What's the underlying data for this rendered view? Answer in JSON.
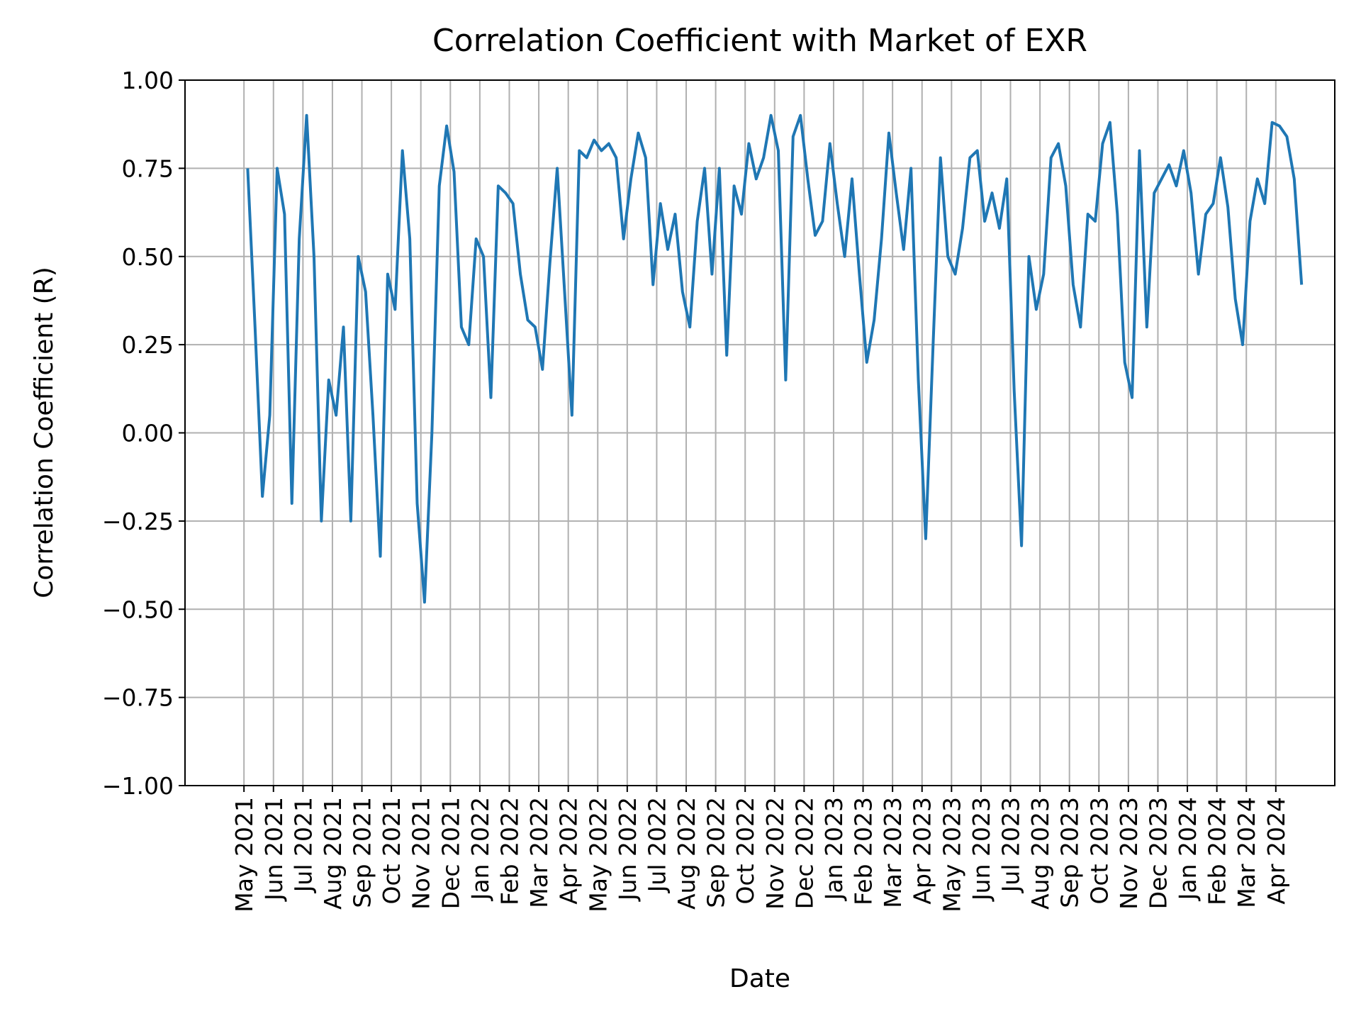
{
  "chart_data": {
    "type": "line",
    "title": "Correlation Coefficient with Market of EXR",
    "x_label": "Date",
    "y_label": "Correlation Coefficient (R)",
    "grid": true,
    "xlim": [
      "2021-03",
      "2024-06"
    ],
    "xticks": [
      {
        "value": "2021-05",
        "label": "May 2021"
      },
      {
        "value": "2021-06",
        "label": "Jun 2021"
      },
      {
        "value": "2021-07",
        "label": "Jul 2021"
      },
      {
        "value": "2021-08",
        "label": "Aug 2021"
      },
      {
        "value": "2021-09",
        "label": "Sep 2021"
      },
      {
        "value": "2021-10",
        "label": "Oct 2021"
      },
      {
        "value": "2021-11",
        "label": "Nov 2021"
      },
      {
        "value": "2021-12",
        "label": "Dec 2021"
      },
      {
        "value": "2022-01",
        "label": "Jan 2022"
      },
      {
        "value": "2022-02",
        "label": "Feb 2022"
      },
      {
        "value": "2022-03",
        "label": "Mar 2022"
      },
      {
        "value": "2022-04",
        "label": "Apr 2022"
      },
      {
        "value": "2022-05",
        "label": "May 2022"
      },
      {
        "value": "2022-06",
        "label": "Jun 2022"
      },
      {
        "value": "2022-07",
        "label": "Jul 2022"
      },
      {
        "value": "2022-08",
        "label": "Aug 2022"
      },
      {
        "value": "2022-09",
        "label": "Sep 2022"
      },
      {
        "value": "2022-10",
        "label": "Oct 2022"
      },
      {
        "value": "2022-11",
        "label": "Nov 2022"
      },
      {
        "value": "2022-12",
        "label": "Dec 2022"
      },
      {
        "value": "2023-01",
        "label": "Jan 2023"
      },
      {
        "value": "2023-02",
        "label": "Feb 2023"
      },
      {
        "value": "2023-03",
        "label": "Mar 2023"
      },
      {
        "value": "2023-04",
        "label": "Apr 2023"
      },
      {
        "value": "2023-05",
        "label": "May 2023"
      },
      {
        "value": "2023-06",
        "label": "Jun 2023"
      },
      {
        "value": "2023-07",
        "label": "Jul 2023"
      },
      {
        "value": "2023-08",
        "label": "Aug 2023"
      },
      {
        "value": "2023-09",
        "label": "Sep 2023"
      },
      {
        "value": "2023-10",
        "label": "Oct 2023"
      },
      {
        "value": "2023-11",
        "label": "Nov 2023"
      },
      {
        "value": "2023-12",
        "label": "Dec 2023"
      },
      {
        "value": "2024-01",
        "label": "Jan 2024"
      },
      {
        "value": "2024-02",
        "label": "Feb 2024"
      },
      {
        "value": "2024-03",
        "label": "Mar 2024"
      },
      {
        "value": "2024-04",
        "label": "Apr 2024"
      }
    ],
    "ylim": [
      -1,
      1
    ],
    "yticks": [
      {
        "value": -1,
        "label": "−1.00"
      },
      {
        "value": -0.75,
        "label": "−0.75"
      },
      {
        "value": -0.5,
        "label": "−0.50"
      },
      {
        "value": -0.25,
        "label": "−0.25"
      },
      {
        "value": 0,
        "label": "0.00"
      },
      {
        "value": 0.25,
        "label": "0.25"
      },
      {
        "value": 0.5,
        "label": "0.50"
      },
      {
        "value": 0.75,
        "label": "0.75"
      },
      {
        "value": 1,
        "label": "1.00"
      }
    ],
    "x": [
      "2021-05",
      "2021-05",
      "2021-05",
      "2021-05",
      "2021-06",
      "2021-06",
      "2021-06",
      "2021-06",
      "2021-07",
      "2021-07",
      "2021-07",
      "2021-07",
      "2021-08",
      "2021-08",
      "2021-08",
      "2021-08",
      "2021-09",
      "2021-09",
      "2021-09",
      "2021-09",
      "2021-10",
      "2021-10",
      "2021-10",
      "2021-10",
      "2021-11",
      "2021-11",
      "2021-11",
      "2021-11",
      "2021-12",
      "2021-12",
      "2021-12",
      "2021-12",
      "2022-01",
      "2022-01",
      "2022-01",
      "2022-01",
      "2022-02",
      "2022-02",
      "2022-02",
      "2022-02",
      "2022-03",
      "2022-03",
      "2022-03",
      "2022-03",
      "2022-04",
      "2022-04",
      "2022-04",
      "2022-04",
      "2022-05",
      "2022-05",
      "2022-05",
      "2022-05",
      "2022-06",
      "2022-06",
      "2022-06",
      "2022-06",
      "2022-07",
      "2022-07",
      "2022-07",
      "2022-07",
      "2022-08",
      "2022-08",
      "2022-08",
      "2022-08",
      "2022-09",
      "2022-09",
      "2022-09",
      "2022-09",
      "2022-10",
      "2022-10",
      "2022-10",
      "2022-10",
      "2022-11",
      "2022-11",
      "2022-11",
      "2022-11",
      "2022-12",
      "2022-12",
      "2022-12",
      "2022-12",
      "2023-01",
      "2023-01",
      "2023-01",
      "2023-01",
      "2023-02",
      "2023-02",
      "2023-02",
      "2023-02",
      "2023-03",
      "2023-03",
      "2023-03",
      "2023-03",
      "2023-04",
      "2023-04",
      "2023-04",
      "2023-04",
      "2023-05",
      "2023-05",
      "2023-05",
      "2023-05",
      "2023-06",
      "2023-06",
      "2023-06",
      "2023-06",
      "2023-07",
      "2023-07",
      "2023-07",
      "2023-07",
      "2023-08",
      "2023-08",
      "2023-08",
      "2023-08",
      "2023-09",
      "2023-09",
      "2023-09",
      "2023-09",
      "2023-10",
      "2023-10",
      "2023-10",
      "2023-10",
      "2023-11",
      "2023-11",
      "2023-11",
      "2023-11",
      "2023-12",
      "2023-12",
      "2023-12",
      "2023-12",
      "2024-01",
      "2024-01",
      "2024-01",
      "2024-01",
      "2024-02",
      "2024-02",
      "2024-02",
      "2024-02",
      "2024-03",
      "2024-03",
      "2024-03",
      "2024-03",
      "2024-04",
      "2024-04",
      "2024-04",
      "2024-04"
    ],
    "series": [
      {
        "color": "#1f77b4",
        "values": [
          0.75,
          0.3,
          -0.18,
          0.05,
          0.75,
          0.62,
          -0.2,
          0.55,
          0.9,
          0.5,
          -0.25,
          0.15,
          0.05,
          0.3,
          -0.25,
          0.5,
          0.4,
          0.05,
          -0.35,
          0.45,
          0.35,
          0.8,
          0.55,
          -0.2,
          -0.48,
          0.0,
          0.7,
          0.87,
          0.74,
          0.3,
          0.25,
          0.55,
          0.5,
          0.1,
          0.7,
          0.68,
          0.65,
          0.45,
          0.32,
          0.3,
          0.18,
          0.48,
          0.75,
          0.4,
          0.05,
          0.8,
          0.78,
          0.83,
          0.8,
          0.82,
          0.78,
          0.55,
          0.72,
          0.85,
          0.78,
          0.42,
          0.65,
          0.52,
          0.62,
          0.4,
          0.3,
          0.6,
          0.75,
          0.45,
          0.75,
          0.22,
          0.7,
          0.62,
          0.82,
          0.72,
          0.78,
          0.9,
          0.8,
          0.15,
          0.84,
          0.9,
          0.72,
          0.56,
          0.6,
          0.82,
          0.65,
          0.5,
          0.72,
          0.45,
          0.2,
          0.32,
          0.55,
          0.85,
          0.68,
          0.52,
          0.75,
          0.15,
          -0.3,
          0.25,
          0.78,
          0.5,
          0.45,
          0.58,
          0.78,
          0.8,
          0.6,
          0.68,
          0.58,
          0.72,
          0.12,
          -0.32,
          0.5,
          0.35,
          0.45,
          0.78,
          0.82,
          0.7,
          0.42,
          0.3,
          0.62,
          0.6,
          0.82,
          0.88,
          0.62,
          0.2,
          0.1,
          0.8,
          0.3,
          0.68,
          0.72,
          0.76,
          0.7,
          0.8,
          0.68,
          0.45,
          0.62,
          0.65,
          0.78,
          0.64,
          0.38,
          0.25,
          0.6,
          0.72,
          0.65,
          0.88,
          0.87,
          0.84,
          0.72,
          0.42
        ]
      }
    ]
  }
}
